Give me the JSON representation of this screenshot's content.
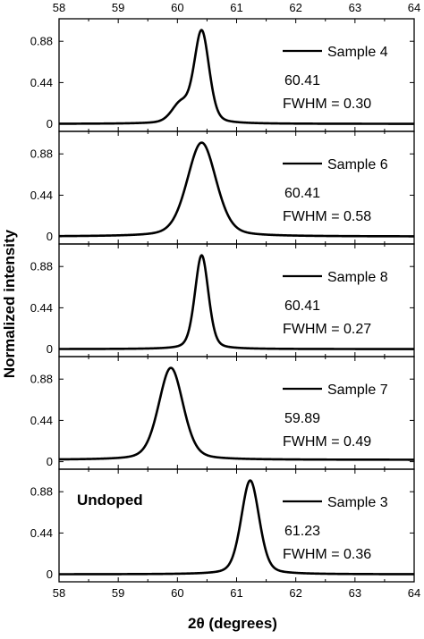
{
  "chart_data": {
    "type": "line",
    "xlabel": "2θ (degrees)",
    "ylabel": "Normalized intensity",
    "xlim": [
      58,
      64
    ],
    "ylim": [
      -0.08,
      1.12
    ],
    "x_ticks": [
      "58",
      "59",
      "60",
      "61",
      "62",
      "63",
      "64"
    ],
    "y_ticks": [
      "0",
      "0.44",
      "0.88"
    ],
    "line_color": "#000000",
    "panels": [
      {
        "legend": "Sample 4",
        "peak_label": "60.41",
        "fwhm_label": "FWHM = 0.30",
        "peak": 60.41,
        "fwhm": 0.3,
        "shoulder": {
          "center": 60.05,
          "height": 0.2,
          "fwhm": 0.35
        },
        "baseline": 0.0,
        "annotation": ""
      },
      {
        "legend": "Sample 6",
        "peak_label": "60.41",
        "fwhm_label": "FWHM = 0.58",
        "peak": 60.41,
        "fwhm": 0.58,
        "baseline": 0.0,
        "annotation": ""
      },
      {
        "legend": "Sample 8",
        "peak_label": "60.41",
        "fwhm_label": "FWHM = 0.27",
        "peak": 60.41,
        "fwhm": 0.27,
        "baseline": 0.0,
        "annotation": ""
      },
      {
        "legend": "Sample 7",
        "peak_label": "59.89",
        "fwhm_label": "FWHM = 0.49",
        "peak": 59.89,
        "fwhm": 0.49,
        "baseline": 0.02,
        "annotation": ""
      },
      {
        "legend": "Sample 3",
        "peak_label": "61.23",
        "fwhm_label": "FWHM = 0.36",
        "peak": 61.23,
        "fwhm": 0.36,
        "baseline": 0.0,
        "annotation": "Undoped"
      }
    ]
  }
}
